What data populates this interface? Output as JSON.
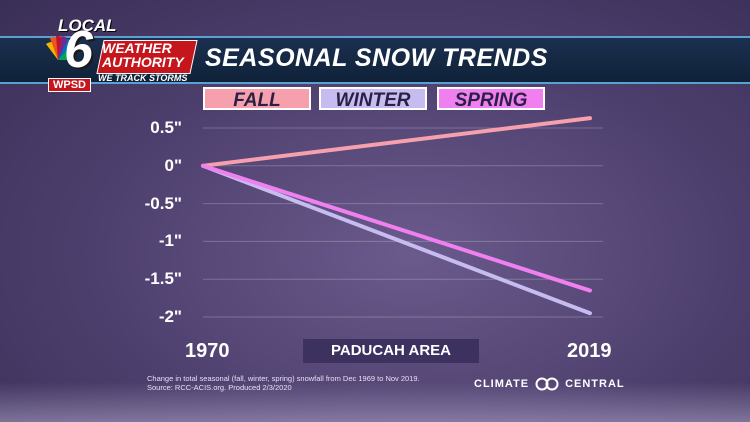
{
  "header": {
    "title": "SEASONAL SNOW TRENDS"
  },
  "logo": {
    "local": "LOCAL",
    "channel": "6",
    "weather": "WEATHER",
    "authority": "AUTHORITY",
    "tagline": "WE TRACK STORMS",
    "station": "WPSD"
  },
  "chart_data": {
    "type": "line",
    "title": "SEASONAL SNOW TRENDS",
    "x": [
      1970,
      2019
    ],
    "xlim": [
      1970,
      2019
    ],
    "ylim": [
      -2,
      0.5
    ],
    "y_ticks": [
      "0.5\"",
      "0\"",
      "-0.5\"",
      "-1\"",
      "-1.5\"",
      "-2\""
    ],
    "x_tick_labels": [
      "1970",
      "2019"
    ],
    "grid": true,
    "legend_position": "top",
    "series": [
      {
        "name": "FALL",
        "color": "#f7a0ad",
        "values": [
          0,
          0.63
        ]
      },
      {
        "name": "WINTER",
        "color": "#c6bcf0",
        "values": [
          0,
          -1.95
        ]
      },
      {
        "name": "SPRING",
        "color": "#f07ff0",
        "values": [
          0,
          -1.65
        ]
      }
    ]
  },
  "area_label": "PADUCAH AREA",
  "footnote": {
    "line1": "Change in total seasonal (fall, winter, spring) snowfall from Dec 1969 to Nov 2019.",
    "line2": "Source: RCC-ACIS.org. Produced 2/3/2020"
  },
  "branding": {
    "left": "CLIMATE",
    "right": "CENTRAL"
  }
}
